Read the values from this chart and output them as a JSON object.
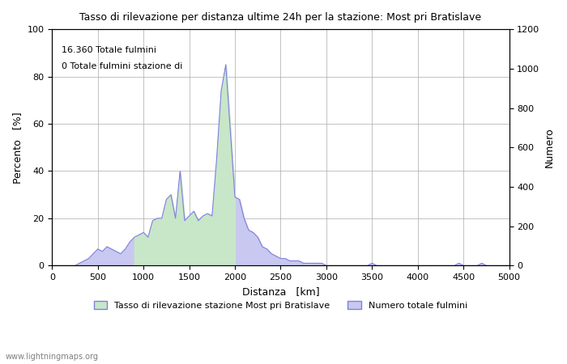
{
  "title": "Tasso di rilevazione per distanza ultime 24h per la stazione: Most pri Bratislave",
  "xlabel": "Distanza   [km]",
  "ylabel_left": "Percento   [%]",
  "ylabel_right": "Numero",
  "annotation_line1": "16.360 Totale fulmini",
  "annotation_line2": "0 Totale fulmini stazione di",
  "legend_label1": "Tasso di rilevazione stazione Most pri Bratislave",
  "legend_label2": "Numero totale fulmini",
  "watermark": "www.lightningmaps.org",
  "xlim": [
    0,
    5000
  ],
  "ylim_left": [
    0,
    100
  ],
  "ylim_right": [
    0,
    1200
  ],
  "fill_color_green": "#c8e6c8",
  "fill_color_blue": "#c8c8f0",
  "line_color": "#8080e0",
  "background_color": "#ffffff",
  "grid_color": "#aaaaaa",
  "x": [
    0,
    50,
    100,
    150,
    200,
    250,
    300,
    350,
    400,
    450,
    500,
    550,
    600,
    650,
    700,
    750,
    800,
    850,
    900,
    950,
    1000,
    1050,
    1100,
    1150,
    1200,
    1250,
    1300,
    1350,
    1400,
    1450,
    1500,
    1550,
    1600,
    1650,
    1700,
    1750,
    1800,
    1850,
    1900,
    1950,
    2000,
    2050,
    2100,
    2150,
    2200,
    2250,
    2300,
    2350,
    2400,
    2450,
    2500,
    2550,
    2600,
    2650,
    2700,
    2750,
    2800,
    2850,
    2900,
    2950,
    3000,
    3050,
    3100,
    3150,
    3200,
    3250,
    3300,
    3350,
    3400,
    3450,
    3500,
    3550,
    3600,
    3650,
    3700,
    3750,
    3800,
    3850,
    3900,
    3950,
    4000,
    4050,
    4100,
    4150,
    4200,
    4250,
    4300,
    4350,
    4400,
    4450,
    4500,
    4550,
    4600,
    4650,
    4700,
    4750,
    4800,
    4850,
    4900,
    4950,
    5000
  ],
  "y_percent": [
    0,
    0,
    0,
    0,
    0,
    0,
    1,
    2,
    3,
    5,
    7,
    6,
    8,
    7,
    6,
    5,
    7,
    10,
    12,
    13,
    14,
    12,
    19,
    20,
    20,
    28,
    30,
    20,
    40,
    19,
    21,
    23,
    19,
    21,
    22,
    21,
    45,
    74,
    85,
    57,
    29,
    28,
    20,
    15,
    14,
    12,
    8,
    7,
    5,
    4,
    3,
    3,
    2,
    2,
    2,
    1,
    1,
    1,
    1,
    1,
    0,
    0,
    0,
    0,
    0,
    0,
    0,
    0,
    0,
    0,
    1,
    0,
    0,
    0,
    0,
    0,
    0,
    0,
    0,
    0,
    0,
    0,
    0,
    0,
    0,
    0,
    0,
    0,
    0,
    1,
    0,
    0,
    0,
    0,
    1,
    0,
    0,
    0,
    0,
    0,
    0
  ],
  "y_number": [
    0,
    0,
    0,
    0,
    0,
    0,
    10,
    20,
    35,
    60,
    80,
    75,
    90,
    80,
    70,
    60,
    75,
    100,
    130,
    150,
    160,
    140,
    220,
    230,
    240,
    320,
    340,
    240,
    450,
    220,
    240,
    260,
    220,
    240,
    250,
    240,
    520,
    850,
    990,
    660,
    340,
    320,
    240,
    180,
    160,
    140,
    100,
    85,
    60,
    50,
    40,
    35,
    25,
    25,
    20,
    15,
    15,
    15,
    12,
    12,
    5,
    5,
    5,
    5,
    5,
    5,
    5,
    5,
    5,
    5,
    10,
    5,
    5,
    5,
    5,
    5,
    5,
    5,
    5,
    5,
    5,
    5,
    5,
    5,
    5,
    5,
    5,
    5,
    5,
    10,
    5,
    5,
    5,
    5,
    10,
    5,
    5,
    5,
    5,
    5,
    0
  ],
  "green_fill_start": 900,
  "green_fill_end": 2000
}
